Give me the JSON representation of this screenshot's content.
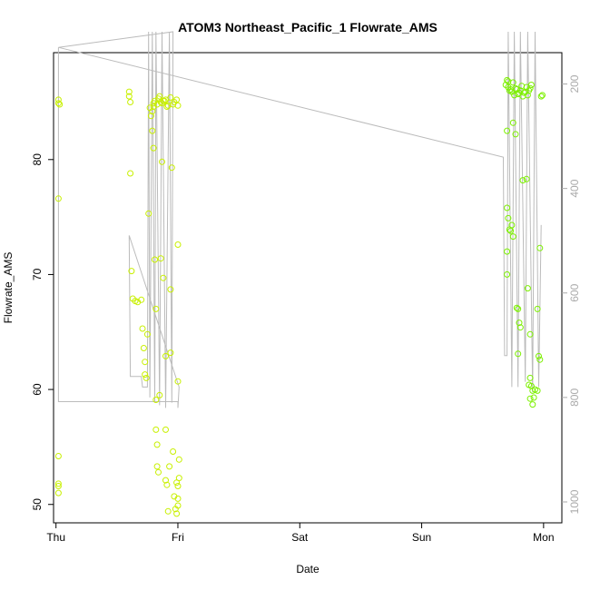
{
  "chart_data": {
    "type": "scatter",
    "title": "ATOM3 Northeast_Pacific_1 Flowrate_AMS",
    "xlabel": "Date",
    "ylabel": "Flowrate_AMS",
    "x_ticks": [
      "Thu",
      "Fri",
      "Sat",
      "Sun",
      "Mon"
    ],
    "x_tick_values": [
      0,
      1,
      2,
      3,
      4
    ],
    "xlim": [
      -0.02,
      4.15
    ],
    "y_ticks": [
      50,
      60,
      70,
      80
    ],
    "ylim": [
      48.4,
      89.3
    ],
    "y2_ticks": [
      200,
      400,
      600,
      800,
      1000
    ],
    "y2lim": [
      1040,
      140
    ],
    "y2_reversed": true,
    "colors": {
      "points_early": "#c8f000",
      "points_late": "#7cf000",
      "secondary_line": "#bbbbbb",
      "axis": "#000000",
      "y2_axis_text": "#aaaaaa"
    },
    "series": [
      {
        "axis": "left",
        "kind": "points",
        "points": [
          [
            0.02,
            85.2
          ],
          [
            0.02,
            84.9
          ],
          [
            0.03,
            84.8
          ],
          [
            0.02,
            76.6
          ],
          [
            0.02,
            54.2
          ],
          [
            0.02,
            51.8
          ],
          [
            0.02,
            51.6
          ],
          [
            0.02,
            51.0
          ],
          [
            0.6,
            85.5
          ],
          [
            0.6,
            85.9
          ],
          [
            0.61,
            85.0
          ],
          [
            0.61,
            78.8
          ],
          [
            0.62,
            70.3
          ],
          [
            0.63,
            67.9
          ],
          [
            0.65,
            67.7
          ],
          [
            0.67,
            67.6
          ],
          [
            0.7,
            67.8
          ],
          [
            0.71,
            65.3
          ],
          [
            0.72,
            63.6
          ],
          [
            0.73,
            62.4
          ],
          [
            0.73,
            61.3
          ],
          [
            0.74,
            61.0
          ],
          [
            0.75,
            64.8
          ],
          [
            0.76,
            75.3
          ],
          [
            0.77,
            84.5
          ],
          [
            0.78,
            83.8
          ],
          [
            0.79,
            82.5
          ],
          [
            0.8,
            81.0
          ],
          [
            0.81,
            71.3
          ],
          [
            0.82,
            67.0
          ],
          [
            0.82,
            59.1
          ],
          [
            0.82,
            56.5
          ],
          [
            0.83,
            55.2
          ],
          [
            0.83,
            53.3
          ],
          [
            0.84,
            52.8
          ],
          [
            0.85,
            59.5
          ],
          [
            0.86,
            71.4
          ],
          [
            0.87,
            79.8
          ],
          [
            0.88,
            85.1
          ],
          [
            0.88,
            69.7
          ],
          [
            0.9,
            62.9
          ],
          [
            0.9,
            56.5
          ],
          [
            0.9,
            52.1
          ],
          [
            0.91,
            51.7
          ],
          [
            0.92,
            49.4
          ],
          [
            0.93,
            53.3
          ],
          [
            0.94,
            63.2
          ],
          [
            0.94,
            68.7
          ],
          [
            0.95,
            79.3
          ],
          [
            0.96,
            84.8
          ],
          [
            0.96,
            54.6
          ],
          [
            0.97,
            50.7
          ],
          [
            0.98,
            49.6
          ],
          [
            0.99,
            51.9
          ],
          [
            1.0,
            60.7
          ],
          [
            1.0,
            72.6
          ],
          [
            1.0,
            84.7
          ],
          [
            1.01,
            53.9
          ],
          [
            1.01,
            52.3
          ],
          [
            1.0,
            51.6
          ],
          [
            1.0,
            50.5
          ],
          [
            0.99,
            49.2
          ],
          [
            1.0,
            49.9
          ],
          [
            0.8,
            84.9
          ],
          [
            0.84,
            85.3
          ],
          [
            0.86,
            85.0
          ],
          [
            0.9,
            85.2
          ],
          [
            0.92,
            84.7
          ],
          [
            0.94,
            85.4
          ],
          [
            0.97,
            85.0
          ],
          [
            0.99,
            85.2
          ],
          [
            0.79,
            84.2
          ],
          [
            0.8,
            84.6
          ],
          [
            0.81,
            85.1
          ],
          [
            0.83,
            84.8
          ],
          [
            0.85,
            85.5
          ],
          [
            0.87,
            84.9
          ],
          [
            0.89,
            85.1
          ],
          [
            0.91,
            84.6
          ],
          [
            3.69,
            86.5
          ],
          [
            3.7,
            86.9
          ],
          [
            3.71,
            86.3
          ],
          [
            3.72,
            86.0
          ],
          [
            3.74,
            85.9
          ],
          [
            3.75,
            86.7
          ],
          [
            3.76,
            85.6
          ],
          [
            3.78,
            86.1
          ],
          [
            3.8,
            85.8
          ],
          [
            3.82,
            86.4
          ],
          [
            3.83,
            85.5
          ],
          [
            3.85,
            85.9
          ],
          [
            3.86,
            86.3
          ],
          [
            3.87,
            85.6
          ],
          [
            3.88,
            86.0
          ],
          [
            3.9,
            86.5
          ],
          [
            3.71,
            86.8
          ],
          [
            3.73,
            86.1
          ],
          [
            3.77,
            86.2
          ],
          [
            3.79,
            85.7
          ],
          [
            3.81,
            86.0
          ],
          [
            3.84,
            85.8
          ],
          [
            3.89,
            86.2
          ],
          [
            3.98,
            85.5
          ],
          [
            3.99,
            85.6
          ],
          [
            3.7,
            82.5
          ],
          [
            3.7,
            75.8
          ],
          [
            3.71,
            74.9
          ],
          [
            3.72,
            73.9
          ],
          [
            3.73,
            73.8
          ],
          [
            3.74,
            74.3
          ],
          [
            3.75,
            73.3
          ],
          [
            3.7,
            72.0
          ],
          [
            3.7,
            70.0
          ],
          [
            3.75,
            83.2
          ],
          [
            3.77,
            82.2
          ],
          [
            3.78,
            67.1
          ],
          [
            3.79,
            67.0
          ],
          [
            3.8,
            65.8
          ],
          [
            3.81,
            65.4
          ],
          [
            3.79,
            63.1
          ],
          [
            3.83,
            78.2
          ],
          [
            3.86,
            78.3
          ],
          [
            3.87,
            68.8
          ],
          [
            3.89,
            64.8
          ],
          [
            3.88,
            60.4
          ],
          [
            3.89,
            61.0
          ],
          [
            3.9,
            60.3
          ],
          [
            3.91,
            59.9
          ],
          [
            3.92,
            59.3
          ],
          [
            3.93,
            60.0
          ],
          [
            3.89,
            59.2
          ],
          [
            3.91,
            58.7
          ],
          [
            3.95,
            67.0
          ],
          [
            3.97,
            72.3
          ],
          [
            3.96,
            62.9
          ],
          [
            3.97,
            62.6
          ],
          [
            3.95,
            59.9
          ]
        ]
      },
      {
        "axis": "right",
        "kind": "line",
        "points": [
          [
            0.02,
            130
          ],
          [
            0.02,
            808
          ],
          [
            1.0,
            808
          ],
          [
            1.0,
            820
          ],
          [
            1.01,
            780
          ],
          [
            0.6,
            490
          ],
          [
            0.61,
            760
          ],
          [
            0.7,
            760
          ],
          [
            0.71,
            780
          ],
          [
            0.75,
            780
          ],
          [
            0.76,
            100
          ],
          [
            0.77,
            800
          ],
          [
            0.79,
            100
          ],
          [
            0.81,
            810
          ],
          [
            0.82,
            100
          ],
          [
            0.85,
            815
          ],
          [
            0.87,
            100
          ],
          [
            0.9,
            820
          ],
          [
            0.93,
            100
          ],
          [
            0.95,
            810
          ],
          [
            0.96,
            100
          ],
          [
            0.02,
            130
          ],
          [
            3.67,
            340
          ],
          [
            3.68,
            720
          ],
          [
            3.7,
            720
          ],
          [
            3.71,
            100
          ],
          [
            3.74,
            780
          ],
          [
            3.76,
            100
          ],
          [
            3.79,
            780
          ],
          [
            3.81,
            100
          ],
          [
            3.85,
            770
          ],
          [
            3.87,
            100
          ],
          [
            3.91,
            790
          ],
          [
            3.93,
            100
          ],
          [
            3.96,
            780
          ],
          [
            3.98,
            470
          ]
        ]
      }
    ],
    "grid": false,
    "legend": "none"
  }
}
